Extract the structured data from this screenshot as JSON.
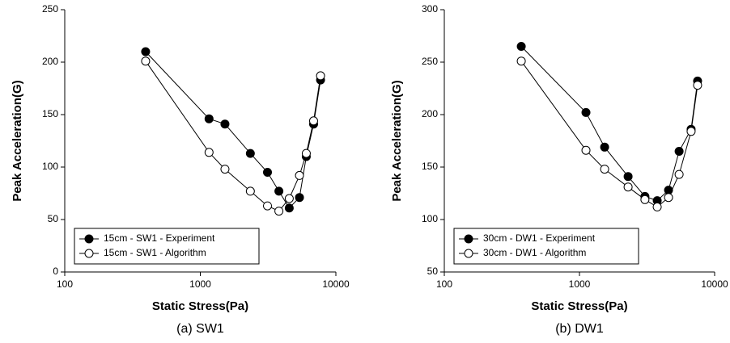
{
  "chart_data": [
    {
      "type": "line",
      "xlabel": "Static Stress(Pa)",
      "ylabel": "Peak Acceleration(G)",
      "caption": "(a)  SW1",
      "x_scale": "log",
      "xlim": [
        100,
        10000
      ],
      "xticks": [
        100,
        1000,
        10000
      ],
      "ylim": [
        0,
        250
      ],
      "yticks": [
        0,
        50,
        100,
        150,
        200,
        250
      ],
      "legend": "lower left",
      "x": [
        395,
        1160,
        1520,
        2340,
        3130,
        3800,
        4530,
        5390,
        6050,
        6850,
        7710
      ],
      "series": [
        {
          "name": "15cm - SW1 - Experiment",
          "color": "#000000",
          "values": [
            210,
            146,
            141,
            113,
            95,
            77,
            61,
            71,
            110,
            141,
            183
          ]
        },
        {
          "name": "15cm - SW1 - Algorithm",
          "color": "#ffffff",
          "values": [
            201,
            114,
            98,
            77,
            63,
            58,
            70,
            92,
            113,
            144,
            187
          ]
        }
      ]
    },
    {
      "type": "line",
      "xlabel": "Static Stress(Pa)",
      "ylabel": "Peak Acceleration(G)",
      "caption": "(b)  DW1",
      "x_scale": "log",
      "xlim": [
        100,
        10000
      ],
      "xticks": [
        100,
        1000,
        10000
      ],
      "ylim": [
        50,
        300
      ],
      "yticks": [
        50,
        100,
        150,
        200,
        250,
        300
      ],
      "legend": "lower left",
      "x": [
        371,
        1117,
        1535,
        2290,
        3050,
        3760,
        4560,
        5460,
        6700,
        7480
      ],
      "series": [
        {
          "name": "30cm - DW1 - Experiment",
          "color": "#000000",
          "values": [
            265,
            202,
            169,
            141,
            122,
            118,
            128,
            165,
            186,
            232
          ]
        },
        {
          "name": "30cm - DW1 - Algorithm",
          "color": "#ffffff",
          "values": [
            251,
            166,
            148,
            131,
            119,
            112,
            121,
            143,
            184,
            228
          ]
        }
      ]
    }
  ]
}
